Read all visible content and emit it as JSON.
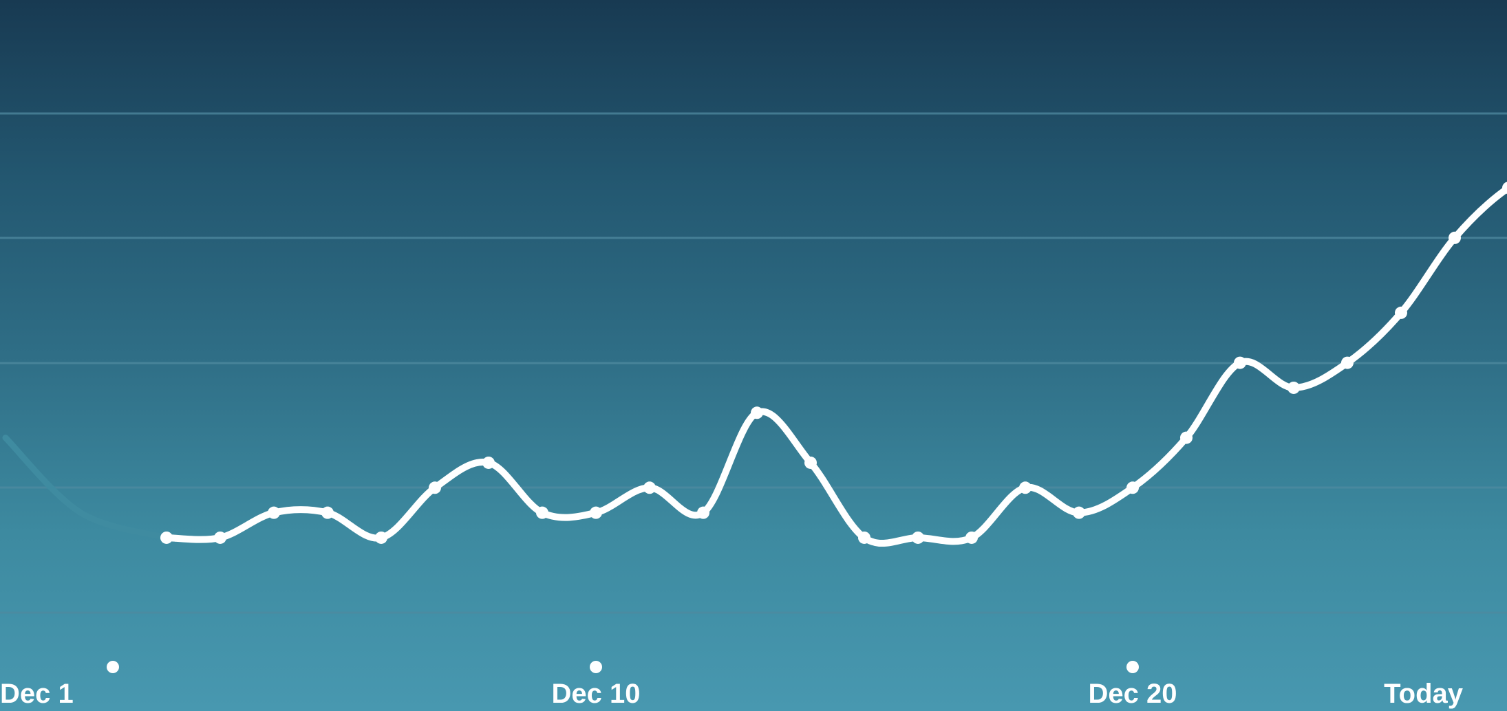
{
  "chart_data": {
    "type": "line",
    "title": "",
    "xlabel": "",
    "ylabel": "",
    "grid": true,
    "gridline_count": 5,
    "y_range": [
      0,
      5.2
    ],
    "x_range": [
      0,
      31
    ],
    "tick_labels": [
      {
        "day": 1,
        "label": "Dec 1",
        "marker": "dot"
      },
      {
        "day": 10,
        "label": "Dec 10",
        "marker": "dot"
      },
      {
        "day": 20,
        "label": "Dec 20",
        "marker": "dot"
      },
      {
        "day": 28,
        "label": "Today",
        "marker": "triangle"
      }
    ],
    "faded_series": {
      "name": "",
      "x": [
        -1,
        0.4
      ],
      "values": [
        1.4,
        0.8
      ]
    },
    "series": [
      {
        "name": "",
        "x": [
          2,
          3,
          4,
          5,
          6,
          7,
          8,
          9,
          10,
          11,
          12,
          13,
          14,
          15,
          16,
          17,
          18,
          19,
          20,
          21,
          22,
          23,
          24,
          25,
          26,
          27,
          28
        ],
        "values": [
          0.6,
          0.6,
          0.8,
          0.8,
          0.6,
          1.0,
          1.2,
          0.8,
          0.8,
          1.0,
          0.8,
          1.6,
          1.2,
          0.6,
          0.6,
          0.6,
          1.0,
          0.8,
          1.0,
          1.4,
          2.0,
          1.8,
          2.0,
          2.4,
          3.0,
          3.4,
          3.6
        ]
      }
    ]
  },
  "colors": {
    "line": "#ffffff",
    "faded_line": "#3f8ba0",
    "grid": "#4f8aa0",
    "bg_top": "#183a52",
    "bg_bottom": "#4898b0"
  }
}
